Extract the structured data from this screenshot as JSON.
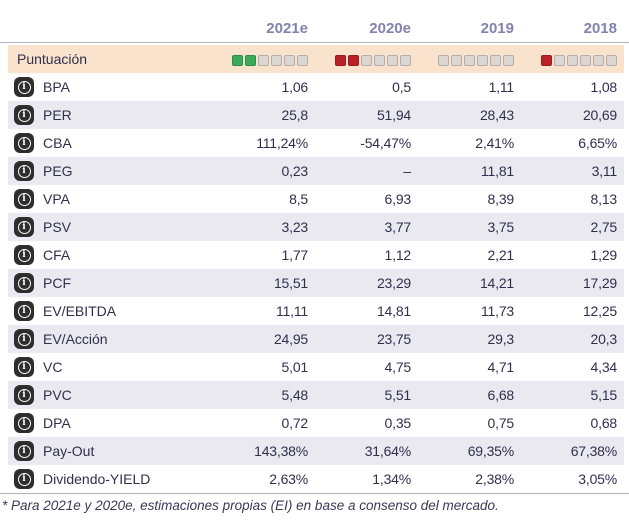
{
  "table": {
    "columns": [
      "2021e",
      "2020e",
      "2019",
      "2018"
    ],
    "score_row": {
      "label": "Puntuación",
      "cells": [
        [
          "green",
          "green",
          "empty",
          "empty",
          "empty",
          "empty"
        ],
        [
          "red",
          "red",
          "empty",
          "empty",
          "empty",
          "empty"
        ],
        [
          "empty",
          "empty",
          "empty",
          "empty",
          "empty",
          "empty"
        ],
        [
          "red",
          "empty",
          "empty",
          "empty",
          "empty",
          "empty"
        ]
      ]
    },
    "rows": [
      {
        "label": "BPA",
        "values": [
          "1,06",
          "0,5",
          "1,11",
          "1,08"
        ]
      },
      {
        "label": "PER",
        "values": [
          "25,8",
          "51,94",
          "28,43",
          "20,69"
        ]
      },
      {
        "label": "CBA",
        "values": [
          "111,24%",
          "-54,47%",
          "2,41%",
          "6,65%"
        ]
      },
      {
        "label": "PEG",
        "values": [
          "0,23",
          "–",
          "11,81",
          "3,11"
        ]
      },
      {
        "label": "VPA",
        "values": [
          "8,5",
          "6,93",
          "8,39",
          "8,13"
        ]
      },
      {
        "label": "PSV",
        "values": [
          "3,23",
          "3,77",
          "3,75",
          "2,75"
        ]
      },
      {
        "label": "CFA",
        "values": [
          "1,77",
          "1,12",
          "2,21",
          "1,29"
        ]
      },
      {
        "label": "PCF",
        "values": [
          "15,51",
          "23,29",
          "14,21",
          "17,29"
        ]
      },
      {
        "label": "EV/EBITDA",
        "values": [
          "11,11",
          "14,81",
          "11,73",
          "12,25"
        ]
      },
      {
        "label": "EV/Acción",
        "values": [
          "24,95",
          "23,75",
          "29,3",
          "20,3"
        ]
      },
      {
        "label": "VC",
        "values": [
          "5,01",
          "4,75",
          "4,71",
          "4,34"
        ]
      },
      {
        "label": "PVC",
        "values": [
          "5,48",
          "5,51",
          "6,68",
          "5,15"
        ]
      },
      {
        "label": "DPA",
        "values": [
          "0,72",
          "0,35",
          "0,75",
          "0,68"
        ]
      },
      {
        "label": "Pay-Out",
        "values": [
          "143,38%",
          "31,64%",
          "69,35%",
          "67,38%"
        ]
      },
      {
        "label": "Dividendo-YIELD",
        "values": [
          "2,63%",
          "1,34%",
          "2,38%",
          "3,05%"
        ]
      }
    ]
  },
  "footnote": "* Para 2021e y 2020e, estimaciones propias (EI) en base a consenso del mercado.",
  "icons": {
    "info_glyph": "i"
  },
  "colors": {
    "score_green": "#3bab5a",
    "score_red": "#bb2228",
    "score_empty": "#dcd7d3",
    "score_row_bg": "#fae3cd",
    "alt_row_bg": "#e9e9ef",
    "header_text": "#8282ae",
    "body_text": "#30304e"
  }
}
